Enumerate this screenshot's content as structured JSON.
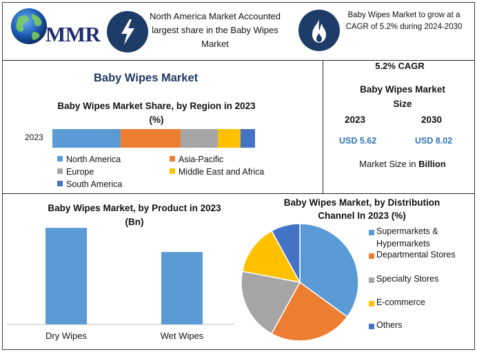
{
  "header": {
    "logo_text": "MMR",
    "headline_1": "North America Market Accounted largest share in the Baby Wipes Market",
    "headline_2": "Baby Wipes Market to grow at a CAGR of 5.2% during 2024-2030"
  },
  "icons": [
    "globe-icon",
    "lightning-icon",
    "flame-icon"
  ],
  "main_title": "Baby Wipes Market",
  "kpi": {
    "cagr": "5.2% CAGR",
    "size_title_line1": "Baby Wipes Market",
    "size_title_line2": "Size",
    "year_1": "2023",
    "year_2": "2030",
    "value_1": "USD 5.62",
    "value_2": "USD 8.02",
    "unit_prefix": "Market Size in ",
    "unit_bold": "Billion"
  },
  "colors": {
    "blue": "#5b9bd5",
    "orange": "#ed7d31",
    "gray": "#a5a5a5",
    "yellow": "#ffc000",
    "dark_blue": "#4472c4",
    "accent_blue": "#2e75b6",
    "icon_navy": "#1e3c68"
  },
  "chart_data": [
    {
      "type": "bar",
      "orientation": "horizontal-stacked",
      "title_line1": "Baby Wipes Market Share, by Region in 2023",
      "title_line2": "(%)",
      "categories": [
        "2023"
      ],
      "series": [
        {
          "name": "North America",
          "values": [
            33
          ]
        },
        {
          "name": "Asia-Pacific",
          "values": [
            29
          ]
        },
        {
          "name": "Europe",
          "values": [
            18
          ]
        },
        {
          "name": "Middle East and Africa",
          "values": [
            11
          ]
        },
        {
          "name": "South America",
          "values": [
            7
          ]
        }
      ],
      "legend": "bottom",
      "grid": false
    },
    {
      "type": "bar",
      "title_line1": "Baby Wipes Market, by Product in 2023",
      "title_line2": "(Bn)",
      "categories": [
        "Dry Wipes",
        "Wet Wipes"
      ],
      "values": [
        3.2,
        2.4
      ],
      "ylim": [
        0,
        3.5
      ],
      "grid": false
    },
    {
      "type": "pie",
      "title_line1": "Baby Wipes Market, by Distribution",
      "title_line2": "Channel In 2023 (%)",
      "labels": [
        "Supermarkets & Hypermarkets",
        "Departmental Stores",
        "Specialty Stores",
        "E-commerce",
        "Others"
      ],
      "legend_lines": [
        [
          "Supermarkets &",
          "Hypermarkets"
        ],
        [
          "Departmental Stores"
        ],
        [
          "Specialty Stores"
        ],
        [
          "E-commerce"
        ],
        [
          "Others"
        ]
      ],
      "values": [
        35,
        23,
        20,
        14,
        8
      ],
      "legend": "right"
    }
  ]
}
